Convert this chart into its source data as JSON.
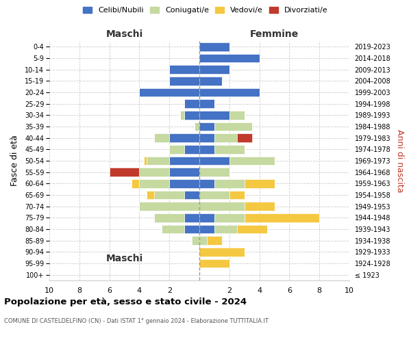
{
  "age_groups": [
    "100+",
    "95-99",
    "90-94",
    "85-89",
    "80-84",
    "75-79",
    "70-74",
    "65-69",
    "60-64",
    "55-59",
    "50-54",
    "45-49",
    "40-44",
    "35-39",
    "30-34",
    "25-29",
    "20-24",
    "15-19",
    "10-14",
    "5-9",
    "0-4"
  ],
  "birth_years": [
    "≤ 1923",
    "1924-1928",
    "1929-1933",
    "1934-1938",
    "1939-1943",
    "1944-1948",
    "1949-1953",
    "1954-1958",
    "1959-1963",
    "1964-1968",
    "1969-1973",
    "1974-1978",
    "1979-1983",
    "1984-1988",
    "1989-1993",
    "1994-1998",
    "1999-2003",
    "2004-2008",
    "2009-2013",
    "2014-2018",
    "2019-2023"
  ],
  "colors": {
    "celibe": "#4472C4",
    "coniugato": "#c5d9a0",
    "vedovo": "#f5c842",
    "divorziato": "#c0392b"
  },
  "maschi": {
    "celibe": [
      0,
      0,
      0,
      0,
      1,
      1,
      0,
      1,
      2,
      2,
      2,
      1,
      2,
      0,
      1,
      1,
      4,
      2,
      2,
      0,
      0
    ],
    "coniugato": [
      0,
      0,
      0,
      0.5,
      1.5,
      2,
      4,
      2,
      2,
      2,
      1.5,
      1,
      1,
      0.3,
      0.3,
      0,
      0,
      0,
      0,
      0,
      0
    ],
    "vedovo": [
      0,
      0,
      0,
      0,
      0,
      0,
      0,
      0.5,
      0.5,
      0,
      0.2,
      0,
      0,
      0,
      0,
      0,
      0,
      0,
      0,
      0,
      0
    ],
    "divorziato": [
      0,
      0,
      0,
      0,
      0,
      0,
      0,
      0,
      0,
      2,
      0,
      0,
      0,
      0,
      0,
      0,
      0,
      0,
      0,
      0,
      0
    ]
  },
  "femmine": {
    "celibe": [
      0,
      0,
      0,
      0,
      1,
      1,
      0,
      0,
      1,
      0,
      2,
      1,
      1,
      1,
      2,
      1,
      4,
      1.5,
      2,
      4,
      2
    ],
    "coniugato": [
      0,
      0,
      0,
      0.5,
      1.5,
      2,
      3,
      2,
      2,
      2,
      3,
      2,
      1.5,
      2.5,
      1,
      0,
      0,
      0,
      0,
      0,
      0
    ],
    "vedovo": [
      0,
      2,
      3,
      1,
      2,
      5,
      2,
      1,
      2,
      0,
      0,
      0,
      0,
      0,
      0,
      0,
      0,
      0,
      0,
      0,
      0
    ],
    "divorziato": [
      0,
      0,
      0,
      0,
      0,
      0,
      0,
      0,
      0,
      0,
      0,
      0,
      1,
      0,
      0,
      0,
      0,
      0,
      0,
      0,
      0
    ]
  },
  "xlim": 10,
  "title": "Popolazione per età, sesso e stato civile - 2024",
  "subtitle": "COMUNE DI CASTELDELFINO (CN) - Dati ISTAT 1° gennaio 2024 - Elaborazione TUTTITALIA.IT",
  "ylabel_left": "Fasce di età",
  "ylabel_right": "Anni di nascita",
  "label_maschi": "Maschi",
  "label_femmine": "Femmine",
  "legend_labels": [
    "Celibi/Nubili",
    "Coniugati/e",
    "Vedovi/e",
    "Divorziati/e"
  ]
}
